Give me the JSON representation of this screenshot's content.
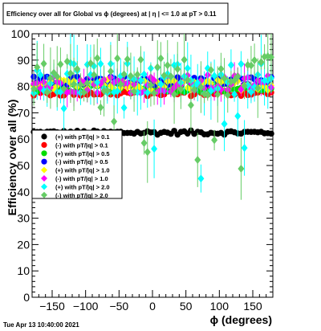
{
  "chart_data": {
    "type": "scatter",
    "title": "Efficiency over all for Global vs ϕ (degrees) at | η | <= 1.0 at pT > 0.11",
    "xlabel": "ϕ (degrees)",
    "ylabel": "Efficiency over all (%)",
    "xlim": [
      -180,
      180
    ],
    "ylim": [
      0,
      100
    ],
    "x_ticks": [
      "−150",
      "−100",
      "−50",
      "0",
      "50",
      "100",
      "150"
    ],
    "y_ticks": [
      "0",
      "10",
      "20",
      "30",
      "40",
      "50",
      "60",
      "70",
      "80",
      "90",
      "100"
    ],
    "legend_position": "middle-left",
    "grid": false,
    "series": [
      {
        "name": "(+) with pT/|q| > 0.1",
        "color": "#000000",
        "level": 62.5,
        "spread": 0.8
      },
      {
        "name": "(-) with pT/|q| > 0.1",
        "color": "#ff0000",
        "level": 77.5,
        "spread": 1.2
      },
      {
        "name": "(+) with pT/|q| > 0.5",
        "color": "#00dd00",
        "level": 79.5,
        "spread": 1.6
      },
      {
        "name": "(-) with pT/|q| > 0.5",
        "color": "#0000ff",
        "level": 82.0,
        "spread": 1.8
      },
      {
        "name": "(+) with pT/|q| > 1.0",
        "color": "#ffff00",
        "level": 80.5,
        "spread": 2.0
      },
      {
        "name": "(-) with pT/|q| > 1.0",
        "color": "#ff00ff",
        "level": 81.0,
        "spread": 3.5
      },
      {
        "name": "(+) with pT/|q| > 2.0",
        "color": "#00ffff",
        "level": 83.0,
        "spread": 6.0
      },
      {
        "name": "(-) with pT/|q| > 2.0",
        "color": "#66cc66",
        "level": 84.0,
        "spread": 7.5
      }
    ],
    "timestamp": "Tue Apr 13 10:40:00 2021"
  }
}
